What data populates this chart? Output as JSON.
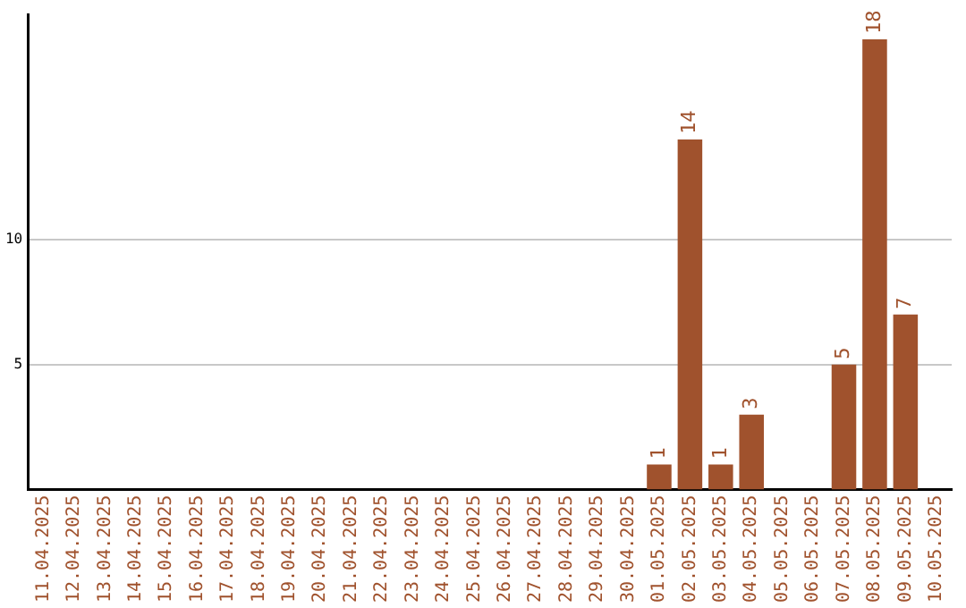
{
  "chart_data": {
    "type": "bar",
    "categories": [
      "11.04.2025",
      "12.04.2025",
      "13.04.2025",
      "14.04.2025",
      "15.04.2025",
      "16.04.2025",
      "17.04.2025",
      "18.04.2025",
      "19.04.2025",
      "20.04.2025",
      "21.04.2025",
      "22.04.2025",
      "23.04.2025",
      "24.04.2025",
      "25.04.2025",
      "26.04.2025",
      "27.04.2025",
      "28.04.2025",
      "29.04.2025",
      "30.04.2025",
      "01.05.2025",
      "02.05.2025",
      "03.05.2025",
      "04.05.2025",
      "05.05.2025",
      "06.05.2025",
      "07.05.2025",
      "08.05.2025",
      "09.05.2025",
      "10.05.2025"
    ],
    "values": [
      0,
      0,
      0,
      0,
      0,
      0,
      0,
      0,
      0,
      0,
      0,
      0,
      0,
      0,
      0,
      0,
      0,
      0,
      0,
      0,
      1,
      14,
      1,
      3,
      0,
      0,
      5,
      18,
      7,
      0
    ],
    "value_labels": [
      null,
      null,
      null,
      null,
      null,
      null,
      null,
      null,
      null,
      null,
      null,
      null,
      null,
      null,
      null,
      null,
      null,
      null,
      null,
      null,
      "1",
      "14",
      "1",
      "3",
      null,
      null,
      "5",
      "18",
      "7",
      null
    ],
    "color": "#a0522d",
    "ylim": [
      0,
      19
    ],
    "yticks": [
      5,
      10
    ],
    "grid": "y",
    "legend": false
  }
}
